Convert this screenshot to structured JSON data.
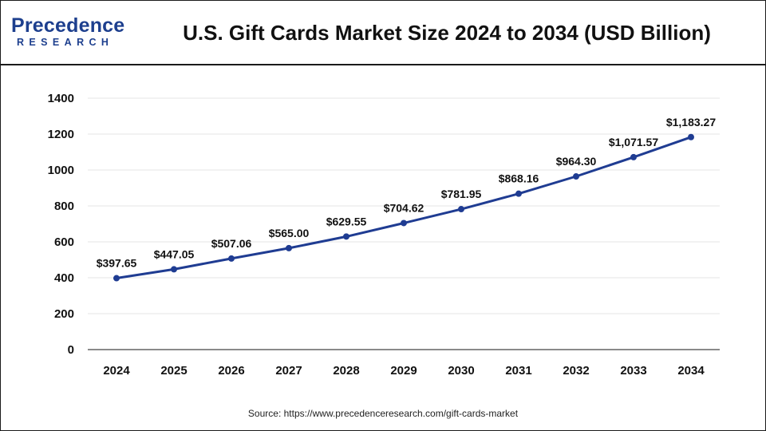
{
  "brand": {
    "logo_main": "Precedence",
    "logo_sub": "RESEARCH"
  },
  "header": {
    "title": "U.S. Gift Cards Market Size 2024 to 2034 (USD Billion)"
  },
  "footer": {
    "source": "Source: https://www.precedenceresearch.com/gift-cards-market"
  },
  "colors": {
    "line": "#1f3c92",
    "grid": "#e6e6e6",
    "axis": "#444444",
    "text": "#111111"
  },
  "chart_data": {
    "type": "line",
    "title": "U.S. Gift Cards Market Size 2024 to 2034 (USD Billion)",
    "xlabel": "",
    "ylabel": "",
    "categories": [
      "2024",
      "2025",
      "2026",
      "2027",
      "2028",
      "2029",
      "2030",
      "2031",
      "2032",
      "2033",
      "2034"
    ],
    "values": [
      397.65,
      447.05,
      507.06,
      565.0,
      629.55,
      704.62,
      781.95,
      868.16,
      964.3,
      1071.57,
      1183.27
    ],
    "data_labels": [
      "$397.65",
      "$447.05",
      "$507.06",
      "$565.00",
      "$629.55",
      "$704.62",
      "$781.95",
      "$868.16",
      "$964.30",
      "$1,071.57",
      "$1,183.27"
    ],
    "yticks": [
      "0",
      "200",
      "400",
      "600",
      "800",
      "1000",
      "1200",
      "1400"
    ],
    "ylim": [
      0,
      1400
    ],
    "grid": true,
    "legend": "none"
  }
}
